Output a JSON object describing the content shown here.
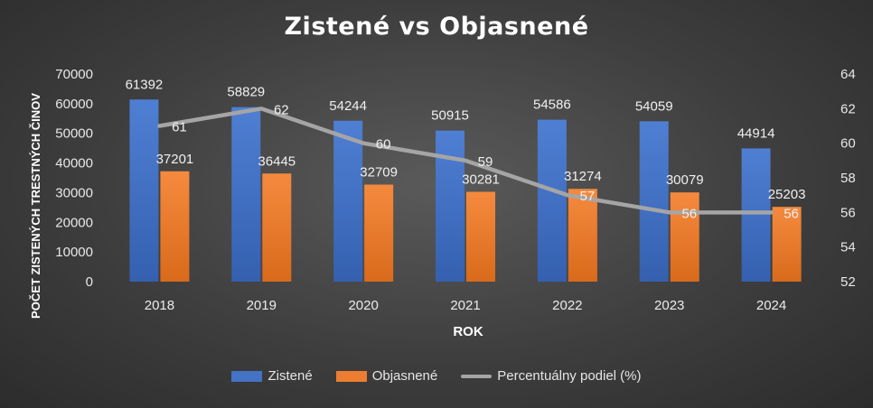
{
  "chart_data": {
    "type": "bar",
    "title": "Zistené vs Objasnené",
    "xlabel": "ROK",
    "ylabel": "POČET ZISTENÝCH TRESTNÝCH ČINOV",
    "categories": [
      "2018",
      "2019",
      "2020",
      "2021",
      "2022",
      "2023",
      "2024"
    ],
    "ylim": [
      0,
      70000
    ],
    "y_ticks": [
      0,
      10000,
      20000,
      30000,
      40000,
      50000,
      60000,
      70000
    ],
    "y2lim": [
      52,
      64
    ],
    "y2_ticks": [
      52,
      54,
      56,
      58,
      60,
      62,
      64
    ],
    "series": [
      {
        "name": "Zistené",
        "type": "bar",
        "color": "#4472C4",
        "values": [
          61392,
          58829,
          54244,
          50915,
          54586,
          54059,
          44914
        ]
      },
      {
        "name": "Objasnené",
        "type": "bar",
        "color": "#ED7D31",
        "values": [
          37201,
          36445,
          32709,
          30281,
          31274,
          30079,
          25203
        ]
      },
      {
        "name": "Percentuálny podiel (%)",
        "type": "line",
        "axis": "secondary",
        "color": "#A5A5A5",
        "values": [
          61,
          62,
          60,
          59,
          57,
          56,
          56
        ]
      }
    ],
    "legend_position": "bottom",
    "grid": false
  }
}
